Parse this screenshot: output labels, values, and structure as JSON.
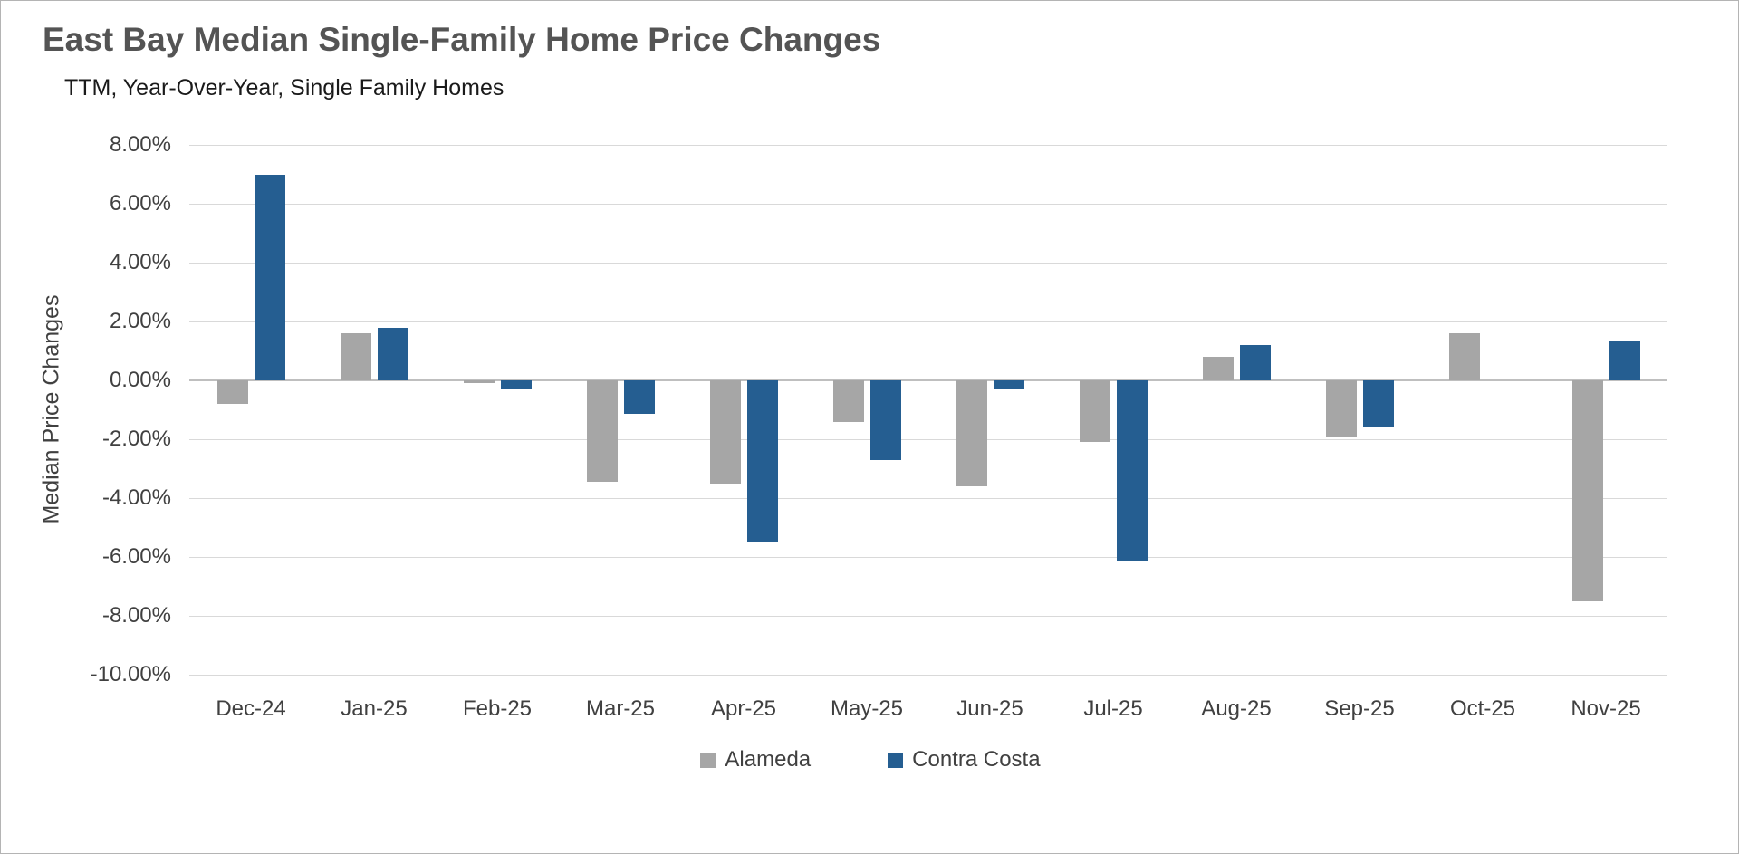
{
  "chart_data": {
    "type": "bar",
    "title": "East Bay Median Single-Family Home Price Changes",
    "subtitle": "TTM, Year-Over-Year, Single Family Homes",
    "xlabel": "",
    "ylabel": "Median Price Changes",
    "categories": [
      "Dec-24",
      "Jan-25",
      "Feb-25",
      "Mar-25",
      "Apr-25",
      "May-25",
      "Jun-25",
      "Jul-25",
      "Aug-25",
      "Sep-25",
      "Oct-25",
      "Nov-25"
    ],
    "series": [
      {
        "name": "Alameda",
        "color": "#A6A6A6",
        "values": [
          -0.8,
          1.6,
          -0.1,
          -3.45,
          -3.5,
          -1.4,
          -3.6,
          -2.1,
          0.8,
          -1.95,
          1.6,
          -7.5
        ]
      },
      {
        "name": "Contra Costa",
        "color": "#255E91",
        "values": [
          7.0,
          1.8,
          -0.3,
          -1.15,
          -5.5,
          -2.7,
          -0.3,
          -6.15,
          1.2,
          -1.6,
          0,
          1.35
        ]
      }
    ],
    "ylim": [
      -10,
      8
    ],
    "ytick_values": [
      8,
      6,
      4,
      2,
      0,
      -2,
      -4,
      -6,
      -8,
      -10
    ],
    "ytick_labels": [
      "8.00%",
      "6.00%",
      "4.00%",
      "2.00%",
      "0.00%",
      "-2.00%",
      "-4.00%",
      "-6.00%",
      "-8.00%",
      "-10.00%"
    ],
    "grid": true,
    "legend_position": "bottom"
  },
  "colors": {
    "alameda_series": "#A6A6A6",
    "contra_costa_series": "#255E91",
    "title_text": "#545454",
    "axis_text": "#404040",
    "gridline": "#D9D9D9",
    "axis_line": "#BFBFBF",
    "background": "#FFFFFF"
  }
}
